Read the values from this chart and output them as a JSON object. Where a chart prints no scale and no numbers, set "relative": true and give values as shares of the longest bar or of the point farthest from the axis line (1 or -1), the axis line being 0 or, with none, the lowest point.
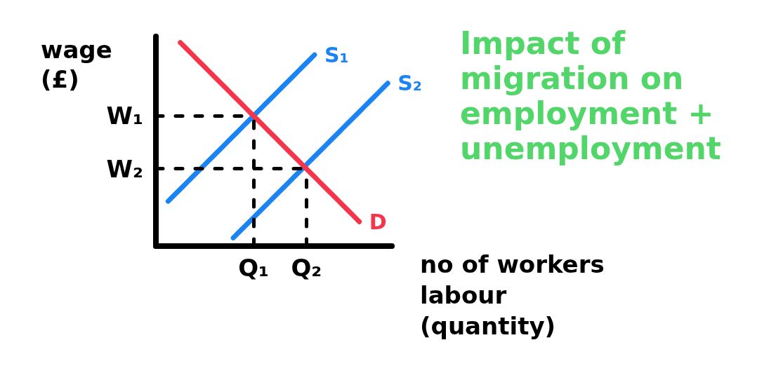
{
  "chart_data": {
    "type": "line",
    "title": "Impact of migration on employment + unemployment",
    "xlabel": "no of workers labour (quantity)",
    "ylabel": "wage (£)",
    "relative": true,
    "marker": "none",
    "categories": [
      null,
      null,
      null,
      null,
      null,
      null,
      null,
      null,
      null,
      null,
      null,
      null,
      null,
      null,
      null,
      null,
      null,
      null,
      null,
      null,
      null,
      null,
      null,
      null,
      "Q₁",
      null,
      null,
      null,
      null,
      null,
      null,
      null,
      null,
      null,
      null,
      null,
      null,
      "Q₂",
      null,
      null,
      null,
      null,
      null,
      null,
      null,
      null,
      null,
      null,
      null,
      null,
      null,
      null,
      null,
      null,
      null,
      null,
      null,
      null,
      null
    ],
    "ref_lines": [
      {
        "axis": "y",
        "value": 0.64,
        "label": "W₁",
        "color": "#000000",
        "line_style": "dashed"
      },
      {
        "axis": "y",
        "value": 0.38,
        "label": "W₂",
        "color": "#000000",
        "line_style": "dashed"
      },
      {
        "axis": "x",
        "value": "Q₁",
        "color": "#000000",
        "line_style": "dashed"
      },
      {
        "axis": "x",
        "value": "Q₂",
        "color": "#000000",
        "line_style": "dashed"
      }
    ],
    "series": [
      {
        "name": "S₁",
        "color": "#1b84f5",
        "values": [
          null,
          null,
          null,
          0.22,
          0.24,
          0.26,
          0.28,
          0.3,
          0.32,
          0.34,
          0.36,
          0.38,
          0.4,
          0.42,
          0.44,
          0.46,
          0.48,
          0.5,
          0.52,
          0.54,
          0.56,
          0.58,
          0.6,
          0.62,
          0.64,
          0.66,
          0.68,
          0.7,
          0.72,
          0.74,
          0.76,
          0.78,
          0.8,
          0.82,
          0.84,
          0.86,
          0.88,
          0.9,
          0.92,
          0.94,
          null,
          null,
          null,
          null,
          null,
          null,
          null,
          null,
          null,
          null,
          null,
          null,
          null,
          null,
          null,
          null,
          null,
          null,
          null
        ]
      },
      {
        "name": "S₂",
        "color": "#1b84f5",
        "values": [
          null,
          null,
          null,
          null,
          null,
          null,
          null,
          null,
          null,
          null,
          null,
          null,
          null,
          null,
          null,
          null,
          null,
          null,
          null,
          0.04,
          0.06,
          0.08,
          0.1,
          0.12,
          0.14,
          0.16,
          0.18,
          0.2,
          0.22,
          0.24,
          0.26,
          0.28,
          0.3,
          0.32,
          0.34,
          0.36,
          0.38,
          0.4,
          0.42,
          0.44,
          0.46,
          0.48,
          0.5,
          0.52,
          0.54,
          0.56,
          0.58,
          0.6,
          0.62,
          0.64,
          0.66,
          0.68,
          0.7,
          0.72,
          0.74,
          0.76,
          0.78,
          0.8,
          null
        ]
      },
      {
        "name": "D",
        "color": "#f5364a",
        "values": [
          null,
          null,
          null,
          null,
          null,
          null,
          1,
          0.98,
          0.96,
          0.94,
          0.92,
          0.9,
          0.88,
          0.86,
          0.84,
          0.82,
          0.8,
          0.78,
          0.76,
          0.74,
          0.72,
          0.7,
          0.68,
          0.66,
          0.64,
          0.62,
          0.6,
          0.58,
          0.56,
          0.54,
          0.52,
          0.5,
          0.48,
          0.46,
          0.44,
          0.42,
          0.4,
          0.38,
          0.36,
          0.34,
          0.32,
          0.3,
          0.28,
          0.26,
          0.24,
          0.22,
          0.2,
          0.18,
          0.16,
          0.14,
          0.12,
          null,
          null,
          null,
          null,
          null,
          null,
          null,
          null
        ]
      }
    ]
  }
}
